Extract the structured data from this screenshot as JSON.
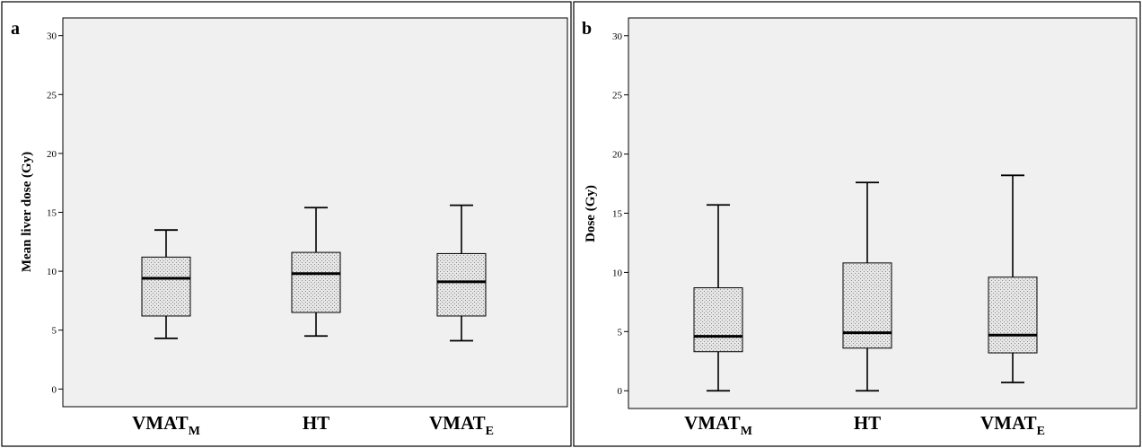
{
  "colors": {
    "plot_background": "#f0f0f0",
    "box_fill": "#e6e6e6",
    "box_stipple": "#8a8a8a",
    "line": "#000000"
  },
  "panels": [
    {
      "letter": "a"
    },
    {
      "letter": "b"
    }
  ],
  "chart_data": [
    {
      "type": "box",
      "panel": "a",
      "title": "",
      "xlabel": "",
      "ylabel": "Mean liver dose (Gy)",
      "ylim": [
        -1.5,
        31.5
      ],
      "yticks": [
        0,
        5,
        10,
        15,
        20,
        25,
        30
      ],
      "grid": false,
      "categories": [
        {
          "name": "VMAT",
          "subscript": "M"
        },
        {
          "name": "HT",
          "subscript": ""
        },
        {
          "name": "VMAT",
          "subscript": "E"
        }
      ],
      "boxes": [
        {
          "min": 4.3,
          "q1": 6.2,
          "median": 9.4,
          "q3": 11.2,
          "max": 13.5
        },
        {
          "min": 4.5,
          "q1": 6.5,
          "median": 9.8,
          "q3": 11.6,
          "max": 15.4
        },
        {
          "min": 4.1,
          "q1": 6.2,
          "median": 9.1,
          "q3": 11.5,
          "max": 15.6
        }
      ]
    },
    {
      "type": "box",
      "panel": "b",
      "title": "",
      "xlabel": "",
      "ylabel": "Dose (Gy)",
      "ylim": [
        -1.5,
        31.5
      ],
      "yticks": [
        0,
        5,
        10,
        15,
        20,
        25,
        30
      ],
      "grid": false,
      "categories": [
        {
          "name": "VMAT",
          "subscript": "M"
        },
        {
          "name": "HT",
          "subscript": ""
        },
        {
          "name": "VMAT",
          "subscript": "E"
        }
      ],
      "boxes": [
        {
          "min": 0.0,
          "q1": 3.3,
          "median": 4.6,
          "q3": 8.7,
          "max": 15.7
        },
        {
          "min": 0.0,
          "q1": 3.6,
          "median": 4.9,
          "q3": 10.8,
          "max": 17.6
        },
        {
          "min": 0.7,
          "q1": 3.2,
          "median": 4.7,
          "q3": 9.6,
          "max": 18.2
        }
      ]
    }
  ]
}
